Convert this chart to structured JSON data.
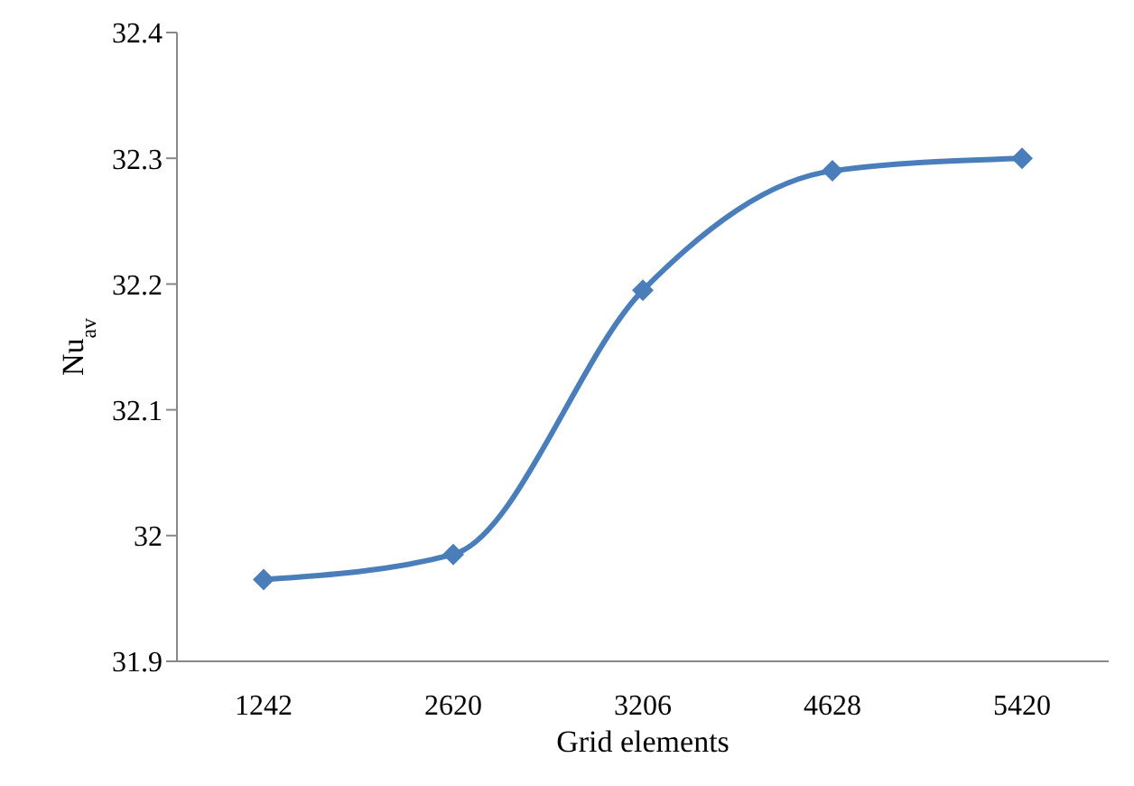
{
  "chart_data": {
    "type": "line",
    "xlabel": "Grid elements",
    "ylabel": "Nu$_{av}$",
    "categories": [
      "1242",
      "2620",
      "3206",
      "4628",
      "5420"
    ],
    "series": [
      {
        "color": "#4a7ebb",
        "values": [
          31.965,
          31.985,
          32.195,
          32.29,
          32.3
        ]
      }
    ],
    "ylim": [
      31.9,
      32.4
    ],
    "yticks": [
      31.9,
      32,
      32.1,
      32.2,
      32.3,
      32.4
    ],
    "grid": false,
    "legend": false,
    "marker": "diamond",
    "line_style": "solid"
  }
}
